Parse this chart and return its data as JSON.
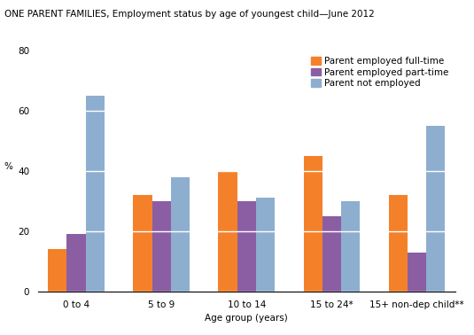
{
  "title": "ONE PARENT FAMILIES, Employment status by age of youngest child—June 2012",
  "ylabel": "%",
  "xlabel": "Age group (years)",
  "categories": [
    "0 to 4",
    "5 to 9",
    "10 to 14",
    "15 to 24*",
    "15+ non-dep child**"
  ],
  "series": {
    "Parent employed full-time": [
      14,
      32,
      40,
      45,
      32
    ],
    "Parent employed part-time": [
      19,
      30,
      30,
      25,
      13
    ],
    "Parent not employed": [
      65,
      38,
      31,
      30,
      55
    ]
  },
  "colors": {
    "Parent employed full-time": "#F4812A",
    "Parent employed part-time": "#8B5EA4",
    "Parent not employed": "#8DAECF"
  },
  "ylim": [
    0,
    80
  ],
  "yticks": [
    0,
    20,
    40,
    60,
    80
  ],
  "bar_width": 0.22,
  "title_fontsize": 7.5,
  "axis_fontsize": 7.5,
  "tick_fontsize": 7.5,
  "legend_fontsize": 7.5,
  "background_color": "#ffffff"
}
